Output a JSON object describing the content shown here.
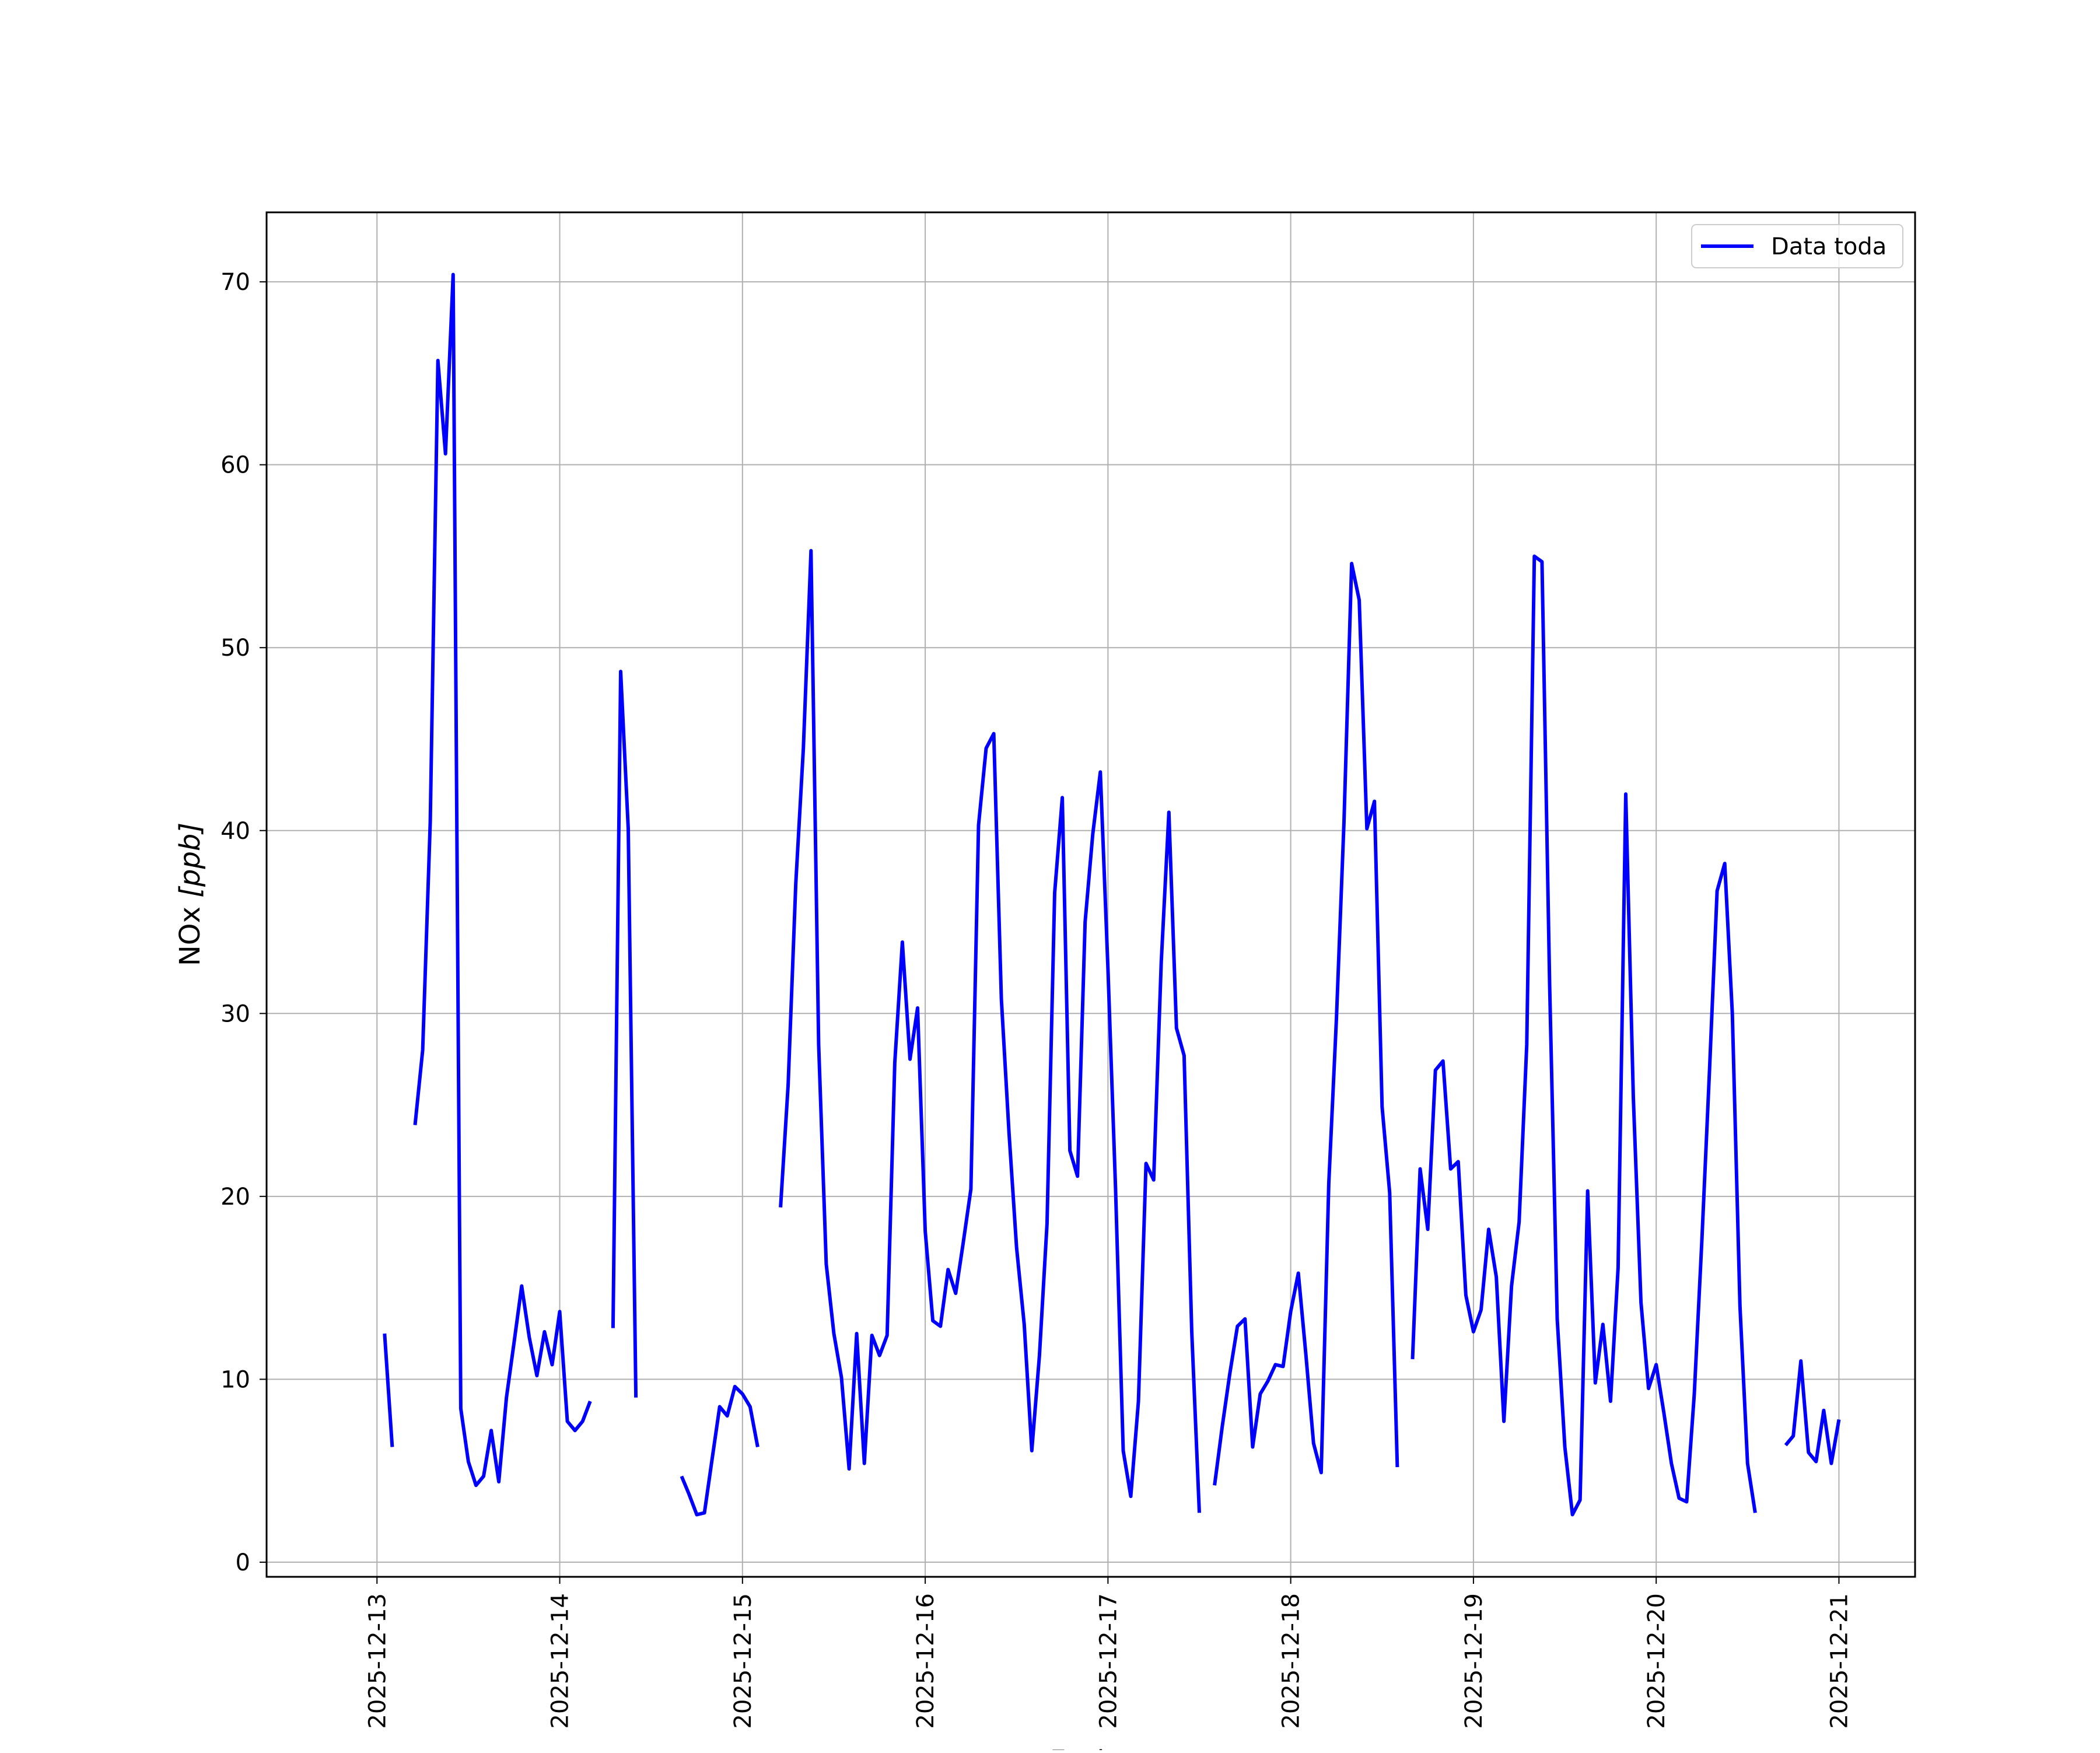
{
  "colors": {
    "series": "#0000ff",
    "grid": "#b0b0b0",
    "axes": "#000000",
    "background": "#ffffff",
    "legend_border": "#cccccc"
  },
  "chart_data": {
    "type": "line",
    "title": "",
    "xlabel": "Fecha",
    "ylabel_prefix": "NOx ",
    "ylabel_unit": "[ppb]",
    "xlim": [
      "2025-12-12 09:30",
      "2025-12-21 10:00"
    ],
    "ylim": [
      -0.8,
      73.8
    ],
    "grid": true,
    "legend_position": "top-right",
    "x_ticks": [
      "2025-12-13",
      "2025-12-14",
      "2025-12-15",
      "2025-12-16",
      "2025-12-17",
      "2025-12-18",
      "2025-12-19",
      "2025-12-20",
      "2025-12-21"
    ],
    "y_ticks": [
      0,
      10,
      20,
      30,
      40,
      50,
      60,
      70
    ],
    "series": [
      {
        "name": "Data toda",
        "segments": [
          [
            [
              "2025-12-13 01:00",
              12.5
            ],
            [
              "2025-12-13 02:00",
              6.3
            ]
          ],
          [
            [
              "2025-12-13 05:00",
              23.9
            ],
            [
              "2025-12-13 06:00",
              28.0
            ],
            [
              "2025-12-13 07:00",
              40.5
            ],
            [
              "2025-12-13 08:00",
              65.7
            ],
            [
              "2025-12-13 09:00",
              60.6
            ],
            [
              "2025-12-13 10:00",
              70.4
            ],
            [
              "2025-12-13 11:00",
              8.4
            ],
            [
              "2025-12-13 12:00",
              5.5
            ],
            [
              "2025-12-13 13:00",
              4.2
            ],
            [
              "2025-12-13 14:00",
              4.7
            ],
            [
              "2025-12-13 15:00",
              7.2
            ],
            [
              "2025-12-13 16:00",
              4.4
            ],
            [
              "2025-12-13 17:00",
              9.0
            ],
            [
              "2025-12-13 18:00",
              12.0
            ],
            [
              "2025-12-13 19:00",
              15.1
            ],
            [
              "2025-12-13 20:00",
              12.3
            ],
            [
              "2025-12-13 21:00",
              10.2
            ],
            [
              "2025-12-13 22:00",
              12.6
            ],
            [
              "2025-12-13 23:00",
              10.8
            ],
            [
              "2025-12-14 00:00",
              13.7
            ],
            [
              "2025-12-14 01:00",
              7.7
            ],
            [
              "2025-12-14 02:00",
              7.2
            ],
            [
              "2025-12-14 03:00",
              7.7
            ],
            [
              "2025-12-14 04:00",
              8.8
            ]
          ],
          [
            [
              "2025-12-14 07:00",
              12.8
            ],
            [
              "2025-12-14 08:00",
              48.7
            ],
            [
              "2025-12-14 09:00",
              40.1
            ],
            [
              "2025-12-14 10:00",
              9.0
            ]
          ],
          [
            [
              "2025-12-14 16:00",
              4.7
            ],
            [
              "2025-12-14 17:00",
              3.7
            ],
            [
              "2025-12-14 18:00",
              2.6
            ],
            [
              "2025-12-14 19:00",
              2.7
            ],
            [
              "2025-12-14 20:00",
              5.6
            ],
            [
              "2025-12-14 21:00",
              8.5
            ],
            [
              "2025-12-14 22:00",
              8.0
            ],
            [
              "2025-12-14 23:00",
              9.6
            ],
            [
              "2025-12-15 00:00",
              9.2
            ],
            [
              "2025-12-15 01:00",
              8.5
            ],
            [
              "2025-12-15 02:00",
              6.3
            ]
          ],
          [
            [
              "2025-12-15 05:00",
              19.4
            ],
            [
              "2025-12-15 06:00",
              26.1
            ],
            [
              "2025-12-15 07:00",
              37.1
            ],
            [
              "2025-12-15 08:00",
              44.5
            ],
            [
              "2025-12-15 09:00",
              55.3
            ],
            [
              "2025-12-15 10:00",
              28.3
            ],
            [
              "2025-12-15 11:00",
              16.3
            ],
            [
              "2025-12-15 12:00",
              12.5
            ],
            [
              "2025-12-15 13:00",
              10.1
            ],
            [
              "2025-12-15 14:00",
              5.1
            ],
            [
              "2025-12-15 15:00",
              12.5
            ],
            [
              "2025-12-15 16:00",
              5.4
            ],
            [
              "2025-12-15 17:00",
              12.4
            ],
            [
              "2025-12-15 18:00",
              11.3
            ],
            [
              "2025-12-15 19:00",
              12.4
            ],
            [
              "2025-12-15 20:00",
              27.3
            ],
            [
              "2025-12-15 21:00",
              33.9
            ],
            [
              "2025-12-15 22:00",
              27.5
            ],
            [
              "2025-12-15 23:00",
              30.3
            ],
            [
              "2025-12-16 00:00",
              18.1
            ],
            [
              "2025-12-16 01:00",
              13.2
            ],
            [
              "2025-12-16 02:00",
              12.9
            ],
            [
              "2025-12-16 03:00",
              16.0
            ],
            [
              "2025-12-16 04:00",
              14.7
            ],
            [
              "2025-12-16 05:00",
              17.5
            ],
            [
              "2025-12-16 06:00",
              20.4
            ],
            [
              "2025-12-16 07:00",
              40.3
            ],
            [
              "2025-12-16 08:00",
              44.5
            ],
            [
              "2025-12-16 09:00",
              45.3
            ],
            [
              "2025-12-16 10:00",
              30.8
            ],
            [
              "2025-12-16 11:00",
              23.5
            ],
            [
              "2025-12-16 12:00",
              17.2
            ],
            [
              "2025-12-16 13:00",
              13.0
            ],
            [
              "2025-12-16 14:00",
              6.1
            ],
            [
              "2025-12-16 15:00",
              11.3
            ],
            [
              "2025-12-16 16:00",
              18.5
            ],
            [
              "2025-12-16 17:00",
              36.6
            ],
            [
              "2025-12-16 18:00",
              41.8
            ],
            [
              "2025-12-16 19:00",
              22.5
            ],
            [
              "2025-12-16 20:00",
              21.1
            ],
            [
              "2025-12-16 21:00",
              35.0
            ],
            [
              "2025-12-16 22:00",
              39.8
            ],
            [
              "2025-12-16 23:00",
              43.2
            ],
            [
              "2025-12-17 00:00",
              32.4
            ],
            [
              "2025-12-17 01:00",
              20.4
            ],
            [
              "2025-12-17 02:00",
              6.1
            ],
            [
              "2025-12-17 03:00",
              3.6
            ],
            [
              "2025-12-17 04:00",
              8.8
            ],
            [
              "2025-12-17 05:00",
              21.8
            ],
            [
              "2025-12-17 06:00",
              20.9
            ],
            [
              "2025-12-17 07:00",
              32.8
            ],
            [
              "2025-12-17 08:00",
              41.0
            ],
            [
              "2025-12-17 09:00",
              29.2
            ],
            [
              "2025-12-17 10:00",
              27.7
            ],
            [
              "2025-12-17 11:00",
              12.6
            ],
            [
              "2025-12-17 12:00",
              2.7
            ]
          ],
          [
            [
              "2025-12-17 14:00",
              4.2
            ],
            [
              "2025-12-17 15:00",
              7.4
            ],
            [
              "2025-12-17 16:00",
              10.3
            ],
            [
              "2025-12-17 17:00",
              12.9
            ],
            [
              "2025-12-17 18:00",
              13.3
            ],
            [
              "2025-12-17 19:00",
              6.3
            ],
            [
              "2025-12-17 20:00",
              9.2
            ],
            [
              "2025-12-17 21:00",
              9.9
            ],
            [
              "2025-12-17 22:00",
              10.8
            ],
            [
              "2025-12-17 23:00",
              10.7
            ],
            [
              "2025-12-18 00:00",
              13.7
            ],
            [
              "2025-12-18 01:00",
              15.8
            ],
            [
              "2025-12-18 02:00",
              11.3
            ],
            [
              "2025-12-18 03:00",
              6.5
            ],
            [
              "2025-12-18 04:00",
              4.9
            ],
            [
              "2025-12-18 05:00",
              20.7
            ],
            [
              "2025-12-18 06:00",
              29.7
            ],
            [
              "2025-12-18 07:00",
              40.5
            ],
            [
              "2025-12-18 08:00",
              54.6
            ],
            [
              "2025-12-18 09:00",
              52.6
            ],
            [
              "2025-12-18 10:00",
              40.1
            ],
            [
              "2025-12-18 11:00",
              41.6
            ],
            [
              "2025-12-18 12:00",
              24.9
            ],
            [
              "2025-12-18 13:00",
              20.2
            ],
            [
              "2025-12-18 14:00",
              5.2
            ]
          ],
          [
            [
              "2025-12-18 16:00",
              11.1
            ],
            [
              "2025-12-18 17:00",
              21.5
            ],
            [
              "2025-12-18 18:00",
              18.2
            ],
            [
              "2025-12-18 19:00",
              26.9
            ],
            [
              "2025-12-18 20:00",
              27.4
            ],
            [
              "2025-12-18 21:00",
              21.5
            ],
            [
              "2025-12-18 22:00",
              21.9
            ],
            [
              "2025-12-18 23:00",
              14.6
            ],
            [
              "2025-12-19 00:00",
              12.6
            ],
            [
              "2025-12-19 01:00",
              13.8
            ],
            [
              "2025-12-19 02:00",
              18.2
            ],
            [
              "2025-12-19 03:00",
              15.6
            ],
            [
              "2025-12-19 04:00",
              7.7
            ],
            [
              "2025-12-19 05:00",
              15.1
            ],
            [
              "2025-12-19 06:00",
              18.6
            ],
            [
              "2025-12-19 07:00",
              28.3
            ],
            [
              "2025-12-19 08:00",
              55.0
            ],
            [
              "2025-12-19 09:00",
              54.7
            ],
            [
              "2025-12-19 10:00",
              31.6
            ],
            [
              "2025-12-19 11:00",
              13.3
            ],
            [
              "2025-12-19 12:00",
              6.3
            ],
            [
              "2025-12-19 13:00",
              2.6
            ],
            [
              "2025-12-19 14:00",
              3.4
            ],
            [
              "2025-12-19 15:00",
              20.3
            ],
            [
              "2025-12-19 16:00",
              9.8
            ],
            [
              "2025-12-19 17:00",
              13.0
            ],
            [
              "2025-12-19 18:00",
              8.8
            ],
            [
              "2025-12-19 19:00",
              16.1
            ],
            [
              "2025-12-19 20:00",
              42.0
            ],
            [
              "2025-12-19 21:00",
              25.4
            ],
            [
              "2025-12-19 22:00",
              14.2
            ],
            [
              "2025-12-19 23:00",
              9.5
            ],
            [
              "2025-12-20 00:00",
              10.8
            ],
            [
              "2025-12-20 01:00",
              8.2
            ],
            [
              "2025-12-20 02:00",
              5.4
            ],
            [
              "2025-12-20 03:00",
              3.5
            ],
            [
              "2025-12-20 04:00",
              3.3
            ],
            [
              "2025-12-20 05:00",
              9.2
            ],
            [
              "2025-12-20 06:00",
              17.6
            ],
            [
              "2025-12-20 07:00",
              26.9
            ],
            [
              "2025-12-20 08:00",
              36.7
            ],
            [
              "2025-12-20 09:00",
              38.2
            ],
            [
              "2025-12-20 10:00",
              30.0
            ],
            [
              "2025-12-20 11:00",
              14.0
            ],
            [
              "2025-12-20 12:00",
              5.4
            ],
            [
              "2025-12-20 13:00",
              2.7
            ]
          ],
          [
            [
              "2025-12-20 17:00",
              6.4
            ],
            [
              "2025-12-20 18:00",
              6.9
            ],
            [
              "2025-12-20 19:00",
              11.0
            ],
            [
              "2025-12-20 20:00",
              6.0
            ],
            [
              "2025-12-20 21:00",
              5.5
            ],
            [
              "2025-12-20 22:00",
              8.3
            ],
            [
              "2025-12-20 23:00",
              5.4
            ],
            [
              "2025-12-21 00:00",
              7.8
            ]
          ]
        ]
      }
    ]
  }
}
